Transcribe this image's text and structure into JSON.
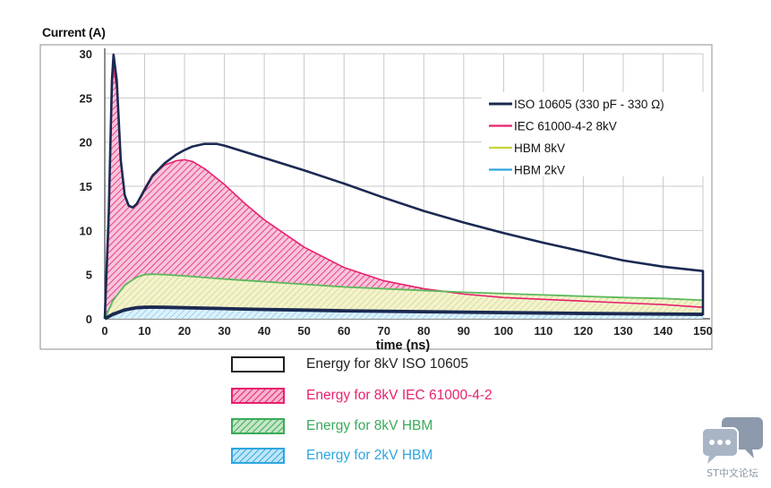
{
  "chart_data": {
    "type": "line",
    "ylabel": "Current (A)",
    "xlabel": "time (ns)",
    "xlim": [
      0,
      150
    ],
    "ylim": [
      0,
      30
    ],
    "x_ticks": [
      "0",
      "10",
      "20",
      "30",
      "40",
      "50",
      "60",
      "70",
      "80",
      "90",
      "100",
      "110",
      "120",
      "130",
      "140",
      "150"
    ],
    "y_ticks": [
      "0",
      "5",
      "10",
      "15",
      "20",
      "25",
      "30"
    ],
    "grid": true,
    "legend_position": "top-right",
    "series": [
      {
        "name": "ISO 10605 (330 pF - 330 Ω)",
        "color": "#1b2a52",
        "fill": "none",
        "x": [
          0,
          1,
          1.8,
          2.2,
          3,
          4,
          5,
          6,
          7,
          8,
          10,
          12,
          15,
          18,
          20,
          22,
          25,
          28,
          30,
          35,
          40,
          50,
          60,
          70,
          80,
          90,
          100,
          110,
          120,
          130,
          140,
          150,
          150
        ],
        "y": [
          0,
          12,
          27,
          29.9,
          27,
          18,
          14,
          12.8,
          12.6,
          13,
          14.6,
          16.2,
          17.6,
          18.6,
          19.1,
          19.5,
          19.8,
          19.8,
          19.6,
          18.9,
          18.2,
          16.8,
          15.3,
          13.7,
          12.2,
          10.9,
          9.7,
          8.6,
          7.6,
          6.6,
          5.9,
          5.4,
          0.4
        ]
      },
      {
        "name": "IEC 61000-4-2 8kV",
        "color": "#e8206f",
        "fill": "#e8206f",
        "x": [
          0,
          1,
          1.8,
          2.2,
          3,
          4,
          5,
          6,
          7,
          8,
          10,
          12,
          15,
          18,
          20,
          22,
          25,
          30,
          35,
          40,
          50,
          60,
          70,
          80,
          90,
          100,
          110,
          120,
          130,
          140,
          150
        ],
        "y": [
          0,
          10,
          26,
          28.5,
          26,
          18,
          14,
          12.8,
          12.6,
          13,
          14.8,
          16.3,
          17.4,
          17.9,
          18.0,
          17.8,
          17,
          15.2,
          13.1,
          11.2,
          8.1,
          5.8,
          4.3,
          3.4,
          2.8,
          2.4,
          2.2,
          2.0,
          1.8,
          1.6,
          1.3
        ]
      },
      {
        "name": "HBM 8kV",
        "color": "#5cb85c",
        "fill": "#b9d36a",
        "x": [
          0,
          2,
          5,
          8,
          10,
          12,
          15,
          20,
          30,
          40,
          50,
          60,
          70,
          80,
          90,
          100,
          110,
          120,
          130,
          140,
          150
        ],
        "y": [
          0,
          2.0,
          3.8,
          4.7,
          5.0,
          5.05,
          5.0,
          4.85,
          4.5,
          4.2,
          3.9,
          3.6,
          3.4,
          3.2,
          3.0,
          2.85,
          2.7,
          2.55,
          2.4,
          2.3,
          2.1
        ]
      },
      {
        "name": "HBM 2kV",
        "color": "#2ea6e0",
        "fill": "#2ea6e0",
        "x": [
          0,
          2,
          5,
          8,
          10,
          12,
          15,
          20,
          30,
          40,
          50,
          60,
          70,
          80,
          90,
          100,
          110,
          120,
          130,
          140,
          150
        ],
        "y": [
          0,
          0.5,
          1.0,
          1.25,
          1.3,
          1.32,
          1.3,
          1.25,
          1.15,
          1.05,
          0.98,
          0.9,
          0.85,
          0.8,
          0.75,
          0.7,
          0.65,
          0.6,
          0.57,
          0.54,
          0.5
        ]
      }
    ],
    "energy_legend": [
      {
        "label": "Energy for 8kV ISO 10605",
        "color": "#1f1f1f",
        "fill": "none",
        "hatched": false
      },
      {
        "label": "Energy for 8kV IEC 61000-4-2",
        "color": "#e8206f",
        "fill": "#e8206f",
        "hatched": true
      },
      {
        "label": "Energy for 8kV HBM",
        "color": "#3aaa5a",
        "fill": "#5cb85c",
        "hatched": true
      },
      {
        "label": "Energy for 2kV HBM",
        "color": "#2ea6e0",
        "fill": "#2ea6e0",
        "hatched": true
      }
    ]
  },
  "watermark": {
    "text": "ST中文论坛",
    "icon": "chat-bubbles-icon"
  }
}
